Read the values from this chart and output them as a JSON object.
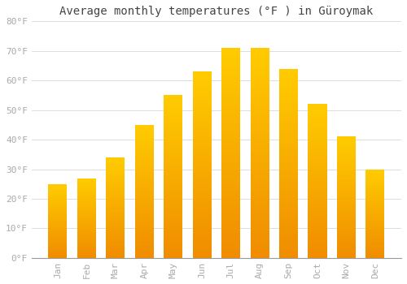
{
  "title": "Average monthly temperatures (°F ) in Güroymak",
  "months": [
    "Jan",
    "Feb",
    "Mar",
    "Apr",
    "May",
    "Jun",
    "Jul",
    "Aug",
    "Sep",
    "Oct",
    "Nov",
    "Dec"
  ],
  "values": [
    25,
    27,
    34,
    45,
    55,
    63,
    71,
    71,
    64,
    52,
    41,
    30
  ],
  "bar_color": "#FFA500",
  "bar_color_light": "#FFD080",
  "bar_color_dark": "#F08000",
  "background_color": "#FFFFFF",
  "plot_bg_color": "#FFFFFF",
  "grid_color": "#DDDDDD",
  "tick_label_color": "#AAAAAA",
  "title_color": "#444444",
  "ylim": [
    0,
    80
  ],
  "yticks": [
    0,
    10,
    20,
    30,
    40,
    50,
    60,
    70,
    80
  ],
  "ytick_labels": [
    "0°F",
    "10°F",
    "20°F",
    "30°F",
    "40°F",
    "50°F",
    "60°F",
    "70°F",
    "80°F"
  ],
  "title_fontsize": 10,
  "tick_fontsize": 8,
  "font_family": "monospace"
}
